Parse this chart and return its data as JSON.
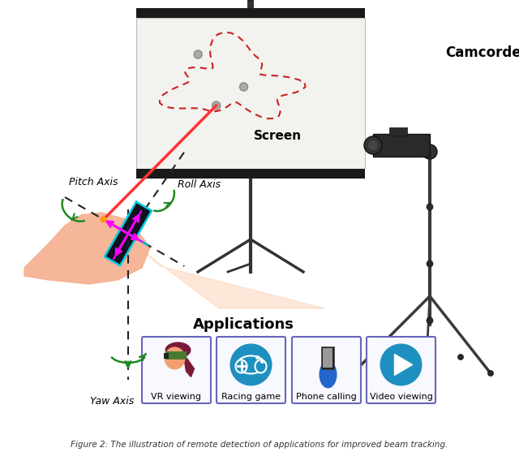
{
  "caption": "Figure 2: The illustration of remote detection of applications for improved beam tracking.",
  "background_color": "#ffffff",
  "figsize": [
    6.4,
    5.57
  ],
  "dpi": 100,
  "applications": [
    "VR viewing",
    "Racing game",
    "Phone calling",
    "Video viewing"
  ],
  "axis_labels": [
    "Pitch Axis",
    "Roll Axis",
    "Yaw Axis"
  ],
  "screen_label": "Screen",
  "camcorder_label": "Camcorder",
  "applications_label": "Applications",
  "beam_color": "#ff3333",
  "magenta_color": "#ff00ff",
  "green_color": "#228822",
  "screen_bg": "#f2f2ee",
  "hand_color": "#f5b090",
  "beam_fill_color": "#fbd5b8",
  "track_color": "#cc2222",
  "dark_color": "#222222",
  "tripod_color": "#333333",
  "app_border_color": "#6666bb"
}
